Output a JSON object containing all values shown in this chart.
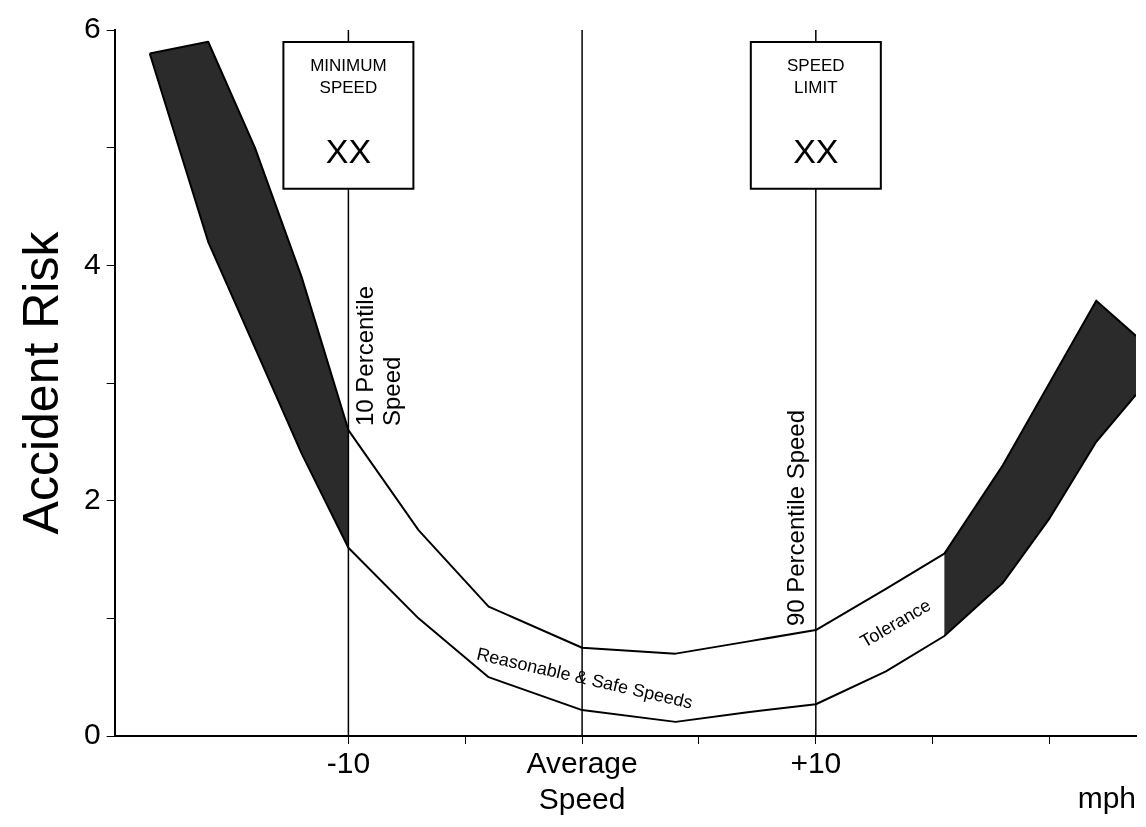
{
  "chart_data": {
    "type": "line",
    "ylabel": "Accident Risk",
    "xlabel": "mph",
    "xlim": [
      -20,
      23.7
    ],
    "ylim": [
      0,
      6
    ],
    "xticks": [
      {
        "value": -10,
        "label": "-10"
      },
      {
        "value": -5,
        "label": null
      },
      {
        "value": 0,
        "label": "Average Speed"
      },
      {
        "value": 5,
        "label": null
      },
      {
        "value": 10,
        "label": "+10"
      },
      {
        "value": 15,
        "label": null
      },
      {
        "value": 20,
        "label": null
      }
    ],
    "yticks": [
      0,
      {
        "value": 1,
        "label": null
      },
      2,
      {
        "value": 3,
        "label": null
      },
      4,
      {
        "value": 5,
        "label": null
      },
      6
    ],
    "series": [
      {
        "color": "#000000",
        "x": [
          -18.5,
          -16,
          -14,
          -12,
          -10,
          -7,
          -4,
          0,
          4,
          7,
          10,
          13,
          15.5,
          18,
          20,
          22,
          23.7
        ],
        "values": [
          5.8,
          5.9,
          5.0,
          3.9,
          2.6,
          1.75,
          1.1,
          0.75,
          0.7,
          0.8,
          0.9,
          1.25,
          1.55,
          2.3,
          3.0,
          3.7,
          3.4
        ]
      },
      {
        "color": "#000000",
        "x": [
          -18.5,
          -16,
          -14,
          -12,
          -10,
          -7,
          -4,
          0,
          4,
          7,
          10,
          13,
          15.5,
          18,
          20,
          22,
          23.7
        ],
        "values": [
          5.8,
          4.2,
          3.3,
          2.4,
          1.6,
          1.0,
          0.5,
          0.22,
          0.12,
          0.2,
          0.27,
          0.55,
          0.85,
          1.3,
          1.85,
          2.5,
          2.9
        ]
      }
    ],
    "bands": [
      {
        "axis": "x",
        "from": -20,
        "to": -10,
        "color": "#2b2b2b"
      },
      {
        "axis": "x",
        "from": 15.5,
        "to": 23.7,
        "color": "#2b2b2b"
      }
    ],
    "ref_lines": [
      {
        "axis": "x",
        "value": -10,
        "label": "10 Percentile Speed",
        "color": "#000000"
      },
      {
        "axis": "x",
        "value": 0,
        "color": "#000000"
      },
      {
        "axis": "x",
        "value": 10,
        "label": "90 Percentile Speed",
        "color": "#000000"
      }
    ],
    "annotations": [
      "MINIMUM SPEED",
      "XX",
      "SPEED LIMIT",
      "XX",
      "Reasonable & Safe Speeds",
      "Tolerance"
    ]
  }
}
